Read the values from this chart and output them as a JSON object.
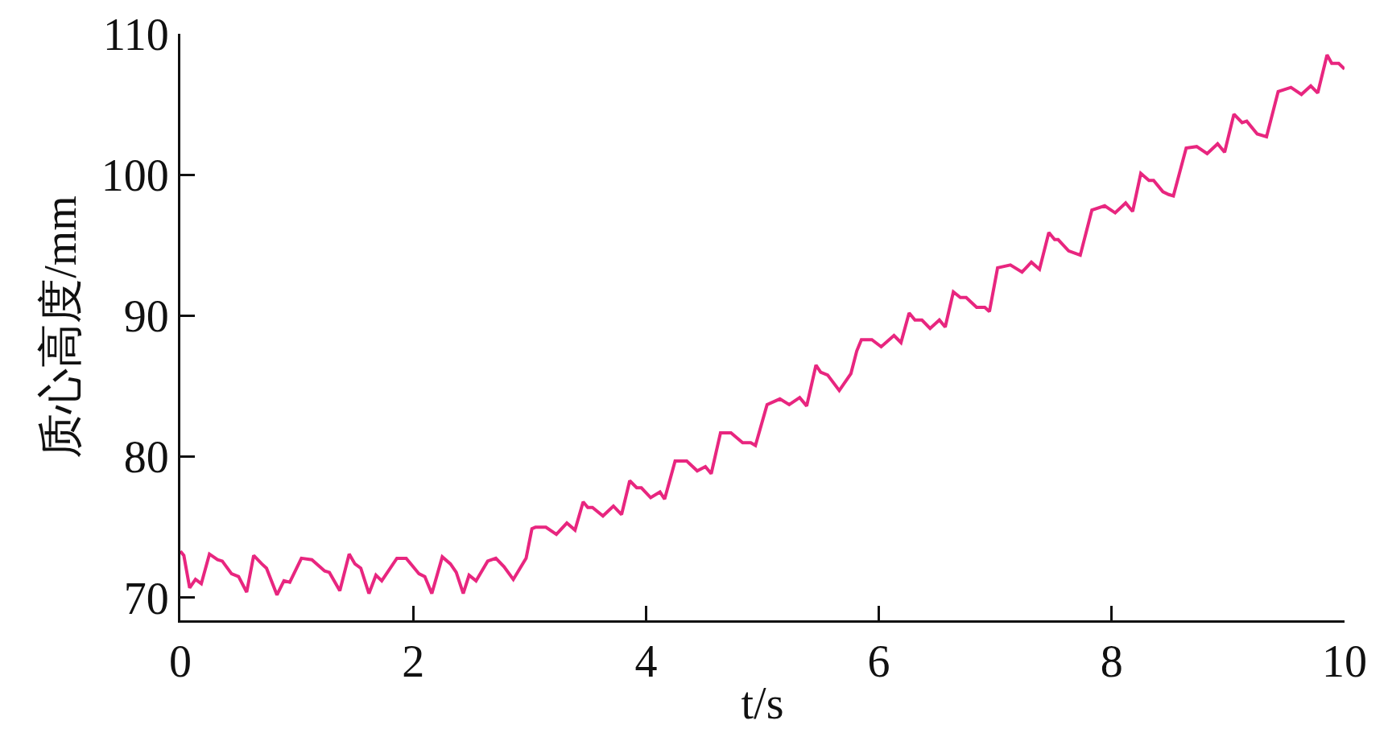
{
  "chart_data": {
    "type": "line",
    "xlabel": "t/s",
    "ylabel": "质心高度/mm",
    "xlim": [
      0,
      10
    ],
    "xticks": [
      0,
      2,
      4,
      6,
      8,
      10
    ],
    "ylim": [
      68.4,
      110
    ],
    "yticks": [
      70,
      80,
      90,
      100,
      110
    ],
    "grid": false,
    "marker": "none",
    "line_style": "solid",
    "series": [
      {
        "color": "#e8267f",
        "x": [
          0,
          0.03,
          0.08,
          0.13,
          0.18,
          0.25,
          0.32,
          0.36,
          0.44,
          0.5,
          0.57,
          0.63,
          0.7,
          0.74,
          0.83,
          0.89,
          0.94,
          1.04,
          1.13,
          1.24,
          1.28,
          1.37,
          1.45,
          1.5,
          1.55,
          1.62,
          1.68,
          1.73,
          1.86,
          1.94,
          2.05,
          2.1,
          2.16,
          2.25,
          2.32,
          2.37,
          2.43,
          2.48,
          2.54,
          2.64,
          2.71,
          2.78,
          2.86,
          2.97,
          3.02,
          3.05,
          3.14,
          3.23,
          3.32,
          3.39,
          3.46,
          3.5,
          3.54,
          3.63,
          3.72,
          3.79,
          3.86,
          3.92,
          3.96,
          4.04,
          4.12,
          4.16,
          4.25,
          4.35,
          4.44,
          4.51,
          4.56,
          4.64,
          4.73,
          4.83,
          4.9,
          4.94,
          5.04,
          5.15,
          5.23,
          5.32,
          5.38,
          5.46,
          5.5,
          5.56,
          5.66,
          5.76,
          5.81,
          5.85,
          5.94,
          6.02,
          6.13,
          6.19,
          6.26,
          6.31,
          6.37,
          6.44,
          6.52,
          6.57,
          6.64,
          6.7,
          6.75,
          6.84,
          6.91,
          6.95,
          7.02,
          7.13,
          7.23,
          7.31,
          7.38,
          7.46,
          7.51,
          7.54,
          7.63,
          7.73,
          7.83,
          7.94,
          8.03,
          8.12,
          8.18,
          8.25,
          8.32,
          8.36,
          8.44,
          8.49,
          8.53,
          8.64,
          8.73,
          8.82,
          8.91,
          8.97,
          9.05,
          9.12,
          9.16,
          9.25,
          9.33,
          9.43,
          9.54,
          9.63,
          9.71,
          9.77,
          9.85,
          9.89,
          9.95,
          10
        ],
        "values": [
          73.3,
          73,
          70.7,
          71.3,
          71,
          73.1,
          72.7,
          72.6,
          71.7,
          71.5,
          70.4,
          73,
          72.4,
          72.1,
          70.2,
          71.2,
          71.1,
          72.8,
          72.7,
          71.9,
          71.8,
          70.5,
          73.1,
          72.4,
          72.1,
          70.3,
          71.6,
          71.2,
          72.8,
          72.8,
          71.7,
          71.5,
          70.3,
          72.9,
          72.4,
          71.8,
          70.3,
          71.6,
          71.2,
          72.6,
          72.8,
          72.2,
          71.3,
          72.8,
          74.9,
          75,
          75,
          74.5,
          75.3,
          74.8,
          76.8,
          76.4,
          76.4,
          75.8,
          76.5,
          75.9,
          78.3,
          77.8,
          77.8,
          77.1,
          77.5,
          77,
          79.7,
          79.7,
          79,
          79.3,
          78.8,
          81.7,
          81.7,
          81,
          81,
          80.8,
          83.7,
          84.1,
          83.7,
          84.2,
          83.6,
          86.5,
          86,
          85.8,
          84.7,
          85.9,
          87.5,
          88.3,
          88.3,
          87.8,
          88.6,
          88.1,
          90.2,
          89.7,
          89.7,
          89.1,
          89.7,
          89.2,
          91.7,
          91.3,
          91.3,
          90.6,
          90.6,
          90.3,
          93.4,
          93.6,
          93.1,
          93.8,
          93.3,
          95.9,
          95.4,
          95.4,
          94.6,
          94.3,
          97.5,
          97.8,
          97.3,
          98,
          97.4,
          100.1,
          99.6,
          99.6,
          98.8,
          98.6,
          98.5,
          101.9,
          102,
          101.5,
          102.2,
          101.6,
          104.3,
          103.7,
          103.8,
          102.9,
          102.7,
          105.9,
          106.2,
          105.7,
          106.3,
          105.8,
          108.5,
          107.9,
          107.9,
          107.5
        ]
      }
    ]
  }
}
